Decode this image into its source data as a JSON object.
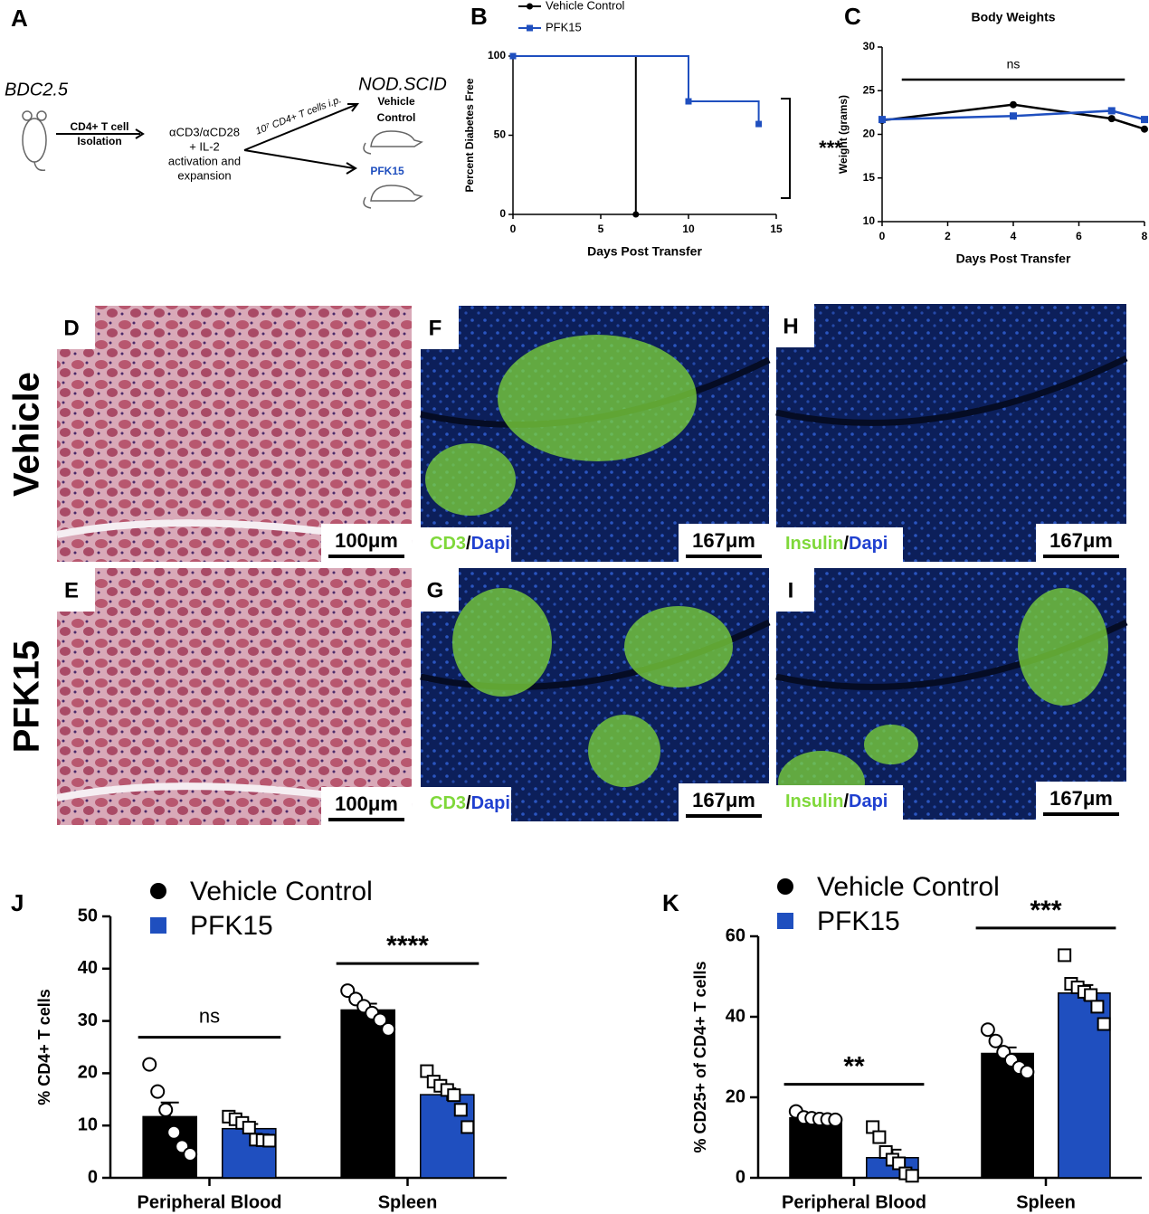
{
  "schematic": {
    "panel": "A",
    "donor": "BDC2.5",
    "step1": [
      "CD4+ T cell",
      "Isolation"
    ],
    "step2": [
      "αCD3/αCD28",
      "+ IL-2",
      "activation and",
      "expansion"
    ],
    "transfer": "10⁷ CD4+ T cells i.p.",
    "recipient": "NOD.SCID",
    "group1": [
      "Vehicle",
      "Control"
    ],
    "group2": "PFK15"
  },
  "images": {
    "rows": [
      "Vehicle",
      "PFK15"
    ],
    "panels": [
      {
        "label": "D",
        "scale": "100μm"
      },
      {
        "label": "E",
        "scale": "100μm"
      },
      {
        "label": "F",
        "scale": "167μm",
        "stain": [
          "CD3",
          "/",
          "Dapi"
        ]
      },
      {
        "label": "G",
        "scale": "167μm",
        "stain": [
          "CD3",
          "/",
          "Dapi"
        ]
      },
      {
        "label": "H",
        "scale": "167μm",
        "stain": [
          "Insulin",
          "/",
          "Dapi"
        ]
      },
      {
        "label": "I",
        "scale": "167μm",
        "stain": [
          "Insulin",
          "/",
          "Dapi"
        ]
      }
    ]
  },
  "chart_data": [
    {
      "type": "step",
      "panel": "B",
      "x_label": "Days Post Transfer",
      "y_label": "Percent Diabetes Free",
      "xlim": [
        0,
        15
      ],
      "xticks": [
        0,
        5,
        10,
        15
      ],
      "ylim": [
        0,
        100
      ],
      "yticks": [
        0,
        50,
        100
      ],
      "annotation": "***",
      "series": [
        {
          "name": "Vehicle Control",
          "color": "#000000",
          "marker": "circle",
          "x": [
            0,
            7
          ],
          "values": [
            100,
            0
          ]
        },
        {
          "name": "PFK15",
          "color": "#1f4fbf",
          "marker": "square",
          "x": [
            0,
            10,
            14
          ],
          "values": [
            100,
            71.4,
            57.1
          ]
        }
      ]
    },
    {
      "type": "line",
      "panel": "C",
      "title": "Body Weights",
      "x_label": "Days Post Transfer",
      "y_label": "Weight (grams)",
      "xlim": [
        0,
        8
      ],
      "xticks": [
        0,
        2,
        4,
        6,
        8
      ],
      "ylim": [
        10,
        30
      ],
      "yticks": [
        10,
        15,
        20,
        25,
        30
      ],
      "annotation": "ns",
      "series": [
        {
          "color": "#000000",
          "marker": "circle",
          "x": [
            0,
            4,
            7,
            8
          ],
          "values": [
            21.6,
            23.4,
            21.8,
            20.6
          ]
        },
        {
          "color": "#1f4fbf",
          "marker": "square",
          "x": [
            0,
            4,
            7,
            8
          ],
          "values": [
            21.7,
            22.1,
            22.7,
            21.7
          ]
        }
      ]
    },
    {
      "type": "bar",
      "panel": "J",
      "y_label": "% CD4+ T cells",
      "categories": [
        "Peripheral Blood",
        "Spleen"
      ],
      "ylim": [
        0,
        50
      ],
      "yticks": [
        0,
        10,
        20,
        30,
        40,
        50
      ],
      "annotations": [
        "ns",
        "****"
      ],
      "series": [
        {
          "name": "Vehicle Control",
          "color": "#000000",
          "marker": "circle",
          "values": [
            11.7,
            32.1
          ],
          "errors": [
            2.7,
            1.2
          ],
          "points": [
            [
              21.7,
              16.5,
              13,
              8.7,
              6,
              4.5
            ],
            [
              35.8,
              34.2,
              32.8,
              31.5,
              30.2,
              28.4
            ]
          ]
        },
        {
          "name": "PFK15",
          "color": "#1f4fbf",
          "marker": "square",
          "values": [
            9.4,
            15.9
          ],
          "errors": [
            0.9,
            1.2
          ],
          "points": [
            [
              11.7,
              11.2,
              10.5,
              9.6,
              7.3,
              7.2,
              7.1
            ],
            [
              20.4,
              18.4,
              17.6,
              16.8,
              15.8,
              13,
              9.7
            ]
          ]
        }
      ]
    },
    {
      "type": "bar",
      "panel": "K",
      "y_label": "% CD25+ of CD4+ T cells",
      "categories": [
        "Peripheral Blood",
        "Spleen"
      ],
      "ylim": [
        0,
        60
      ],
      "yticks": [
        0,
        20,
        40,
        60
      ],
      "annotations": [
        "**",
        "***"
      ],
      "series": [
        {
          "name": "Vehicle Control",
          "color": "#000000",
          "marker": "circle",
          "values": [
            14.9,
            30.9
          ],
          "errors": [
            0.4,
            1.5
          ],
          "points": [
            [
              16.5,
              15,
              14.8,
              14.6,
              14.5,
              14.4
            ],
            [
              36.8,
              34,
              31.2,
              29.2,
              27.4,
              26.3
            ]
          ]
        },
        {
          "name": "PFK15",
          "color": "#1f4fbf",
          "marker": "square",
          "values": [
            5.0,
            45.9
          ],
          "errors": [
            2.0,
            2.0
          ],
          "points": [
            [
              12.6,
              10.1,
              6.4,
              4.5,
              3.6,
              1.1,
              0.5
            ],
            [
              55.3,
              48.2,
              47.3,
              46.2,
              45.4,
              42.5,
              38.2
            ]
          ]
        }
      ]
    }
  ]
}
